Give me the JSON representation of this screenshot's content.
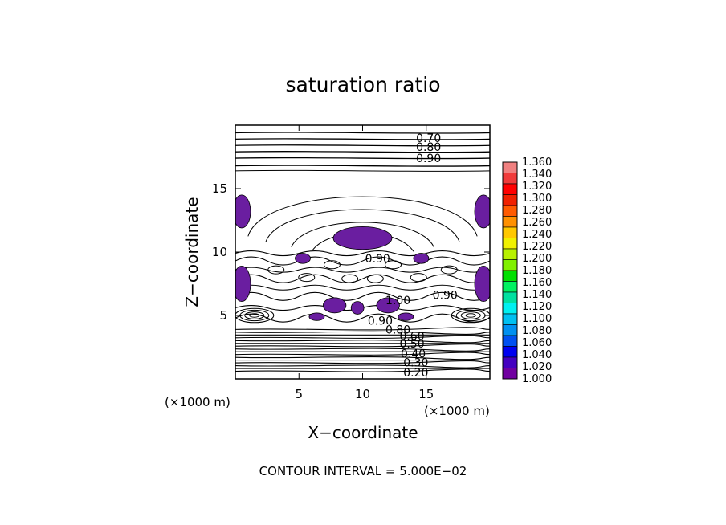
{
  "chart_data": {
    "type": "contour",
    "title": "saturation ratio",
    "xlabel": "X−coordinate",
    "ylabel": "Z−coordinate",
    "x_unit_left": "(×1000 m)",
    "x_unit_right": "(×1000 m)",
    "xlim": [
      0,
      20
    ],
    "ylim": [
      0,
      20
    ],
    "x_ticks": [
      5,
      10,
      15
    ],
    "y_ticks": [
      5,
      10,
      15
    ],
    "x_tick_labels": [
      "5",
      "10",
      "15"
    ],
    "y_tick_labels": [
      "5",
      "10",
      "15"
    ],
    "contour_interval_text": "CONTOUR INTERVAL = 5.000E−02",
    "contour_labels": [
      {
        "text": "0.70",
        "x": 14.2,
        "z": 19.0
      },
      {
        "text": "0.80",
        "x": 14.2,
        "z": 18.3
      },
      {
        "text": "0.90",
        "x": 14.2,
        "z": 17.4
      },
      {
        "text": "0.90",
        "x": 10.2,
        "z": 9.5
      },
      {
        "text": "1.00",
        "x": 11.8,
        "z": 6.2
      },
      {
        "text": "0.90",
        "x": 15.5,
        "z": 6.6
      },
      {
        "text": "0.90",
        "x": 10.4,
        "z": 4.6
      },
      {
        "text": "0.80",
        "x": 11.8,
        "z": 3.9
      },
      {
        "text": "0.60",
        "x": 12.9,
        "z": 3.4
      },
      {
        "text": "0.50",
        "x": 12.9,
        "z": 2.8
      },
      {
        "text": "0.40",
        "x": 13.0,
        "z": 2.0
      },
      {
        "text": "0.30",
        "x": 13.2,
        "z": 1.3
      },
      {
        "text": "0.20",
        "x": 13.2,
        "z": 0.5
      }
    ],
    "supersaturated_regions": [
      {
        "cx": 10.0,
        "cz": 11.1,
        "rx": 2.3,
        "rz": 0.9
      },
      {
        "cx": 0.5,
        "cz": 13.2,
        "rx": 0.7,
        "rz": 1.3
      },
      {
        "cx": 19.5,
        "cz": 13.2,
        "rx": 0.7,
        "rz": 1.3
      },
      {
        "cx": 5.3,
        "cz": 9.5,
        "rx": 0.6,
        "rz": 0.4
      },
      {
        "cx": 14.6,
        "cz": 9.5,
        "rx": 0.6,
        "rz": 0.4
      },
      {
        "cx": 0.5,
        "cz": 7.5,
        "rx": 0.7,
        "rz": 1.4
      },
      {
        "cx": 19.5,
        "cz": 7.5,
        "rx": 0.7,
        "rz": 1.4
      },
      {
        "cx": 7.8,
        "cz": 5.8,
        "rx": 0.9,
        "rz": 0.6
      },
      {
        "cx": 12.0,
        "cz": 5.8,
        "rx": 0.9,
        "rz": 0.6
      },
      {
        "cx": 9.6,
        "cz": 5.6,
        "rx": 0.5,
        "rz": 0.5
      },
      {
        "cx": 6.4,
        "cz": 4.9,
        "rx": 0.6,
        "rz": 0.3
      },
      {
        "cx": 13.4,
        "cz": 4.9,
        "rx": 0.6,
        "rz": 0.3
      }
    ],
    "colorbar": {
      "levels": [
        "1.360",
        "1.340",
        "1.320",
        "1.300",
        "1.280",
        "1.260",
        "1.240",
        "1.220",
        "1.200",
        "1.180",
        "1.160",
        "1.140",
        "1.120",
        "1.100",
        "1.080",
        "1.060",
        "1.040",
        "1.020",
        "1.000"
      ],
      "colors": [
        "#f08080",
        "#f03a3a",
        "#ff0000",
        "#f02000",
        "#ff5a00",
        "#ff9000",
        "#ffc800",
        "#f0f000",
        "#b8f000",
        "#80f000",
        "#00e000",
        "#00f060",
        "#00e0a0",
        "#00f0f0",
        "#00c0f0",
        "#0090f0",
        "#0050f0",
        "#0000f0",
        "#4400c0",
        "#7000a0"
      ]
    },
    "region_color": "#6a1ea0"
  }
}
